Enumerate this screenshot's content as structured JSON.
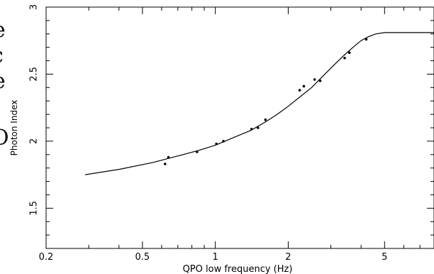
{
  "chart_data": {
    "type": "scatter",
    "title": "",
    "xlabel": "QPO low frequency (Hz)",
    "ylabel": "Photon Index",
    "xscale": "log",
    "xlim": [
      0.2,
      8.0
    ],
    "ylim": [
      1.2,
      3.0
    ],
    "xticks": [
      0.2,
      0.5,
      1,
      2,
      5
    ],
    "xtick_labels": [
      "0.2",
      "0.5",
      "1",
      "2",
      "5"
    ],
    "yticks": [
      1.5,
      2,
      2.5,
      3
    ],
    "ytick_labels": [
      "1.5",
      "2",
      "2.5",
      "3"
    ],
    "grid": false,
    "legend": "none",
    "series": [
      {
        "type": "scatter",
        "x": [
          0.62,
          0.64,
          0.84,
          1.01,
          1.08,
          1.41,
          1.5,
          1.61,
          2.23,
          2.32,
          2.57,
          2.71,
          3.42,
          3.58,
          4.2
        ],
        "y": [
          1.83,
          1.88,
          1.92,
          1.98,
          2.0,
          2.09,
          2.1,
          2.16,
          2.38,
          2.41,
          2.46,
          2.45,
          2.62,
          2.66,
          2.76
        ]
      },
      {
        "type": "line",
        "x": [
          0.29,
          0.4,
          0.55,
          0.7,
          0.85,
          1.0,
          1.2,
          1.4,
          1.6,
          1.8,
          2.0,
          2.2,
          2.5,
          2.8,
          3.1,
          3.4,
          3.7,
          4.0,
          4.3,
          4.6,
          5.0,
          5.5,
          6.0,
          7.0,
          8.0
        ],
        "y": [
          1.75,
          1.79,
          1.84,
          1.89,
          1.93,
          1.97,
          2.03,
          2.08,
          2.14,
          2.2,
          2.26,
          2.32,
          2.4,
          2.49,
          2.57,
          2.64,
          2.7,
          2.75,
          2.78,
          2.8,
          2.81,
          2.81,
          2.81,
          2.81,
          2.81
        ]
      }
    ]
  }
}
